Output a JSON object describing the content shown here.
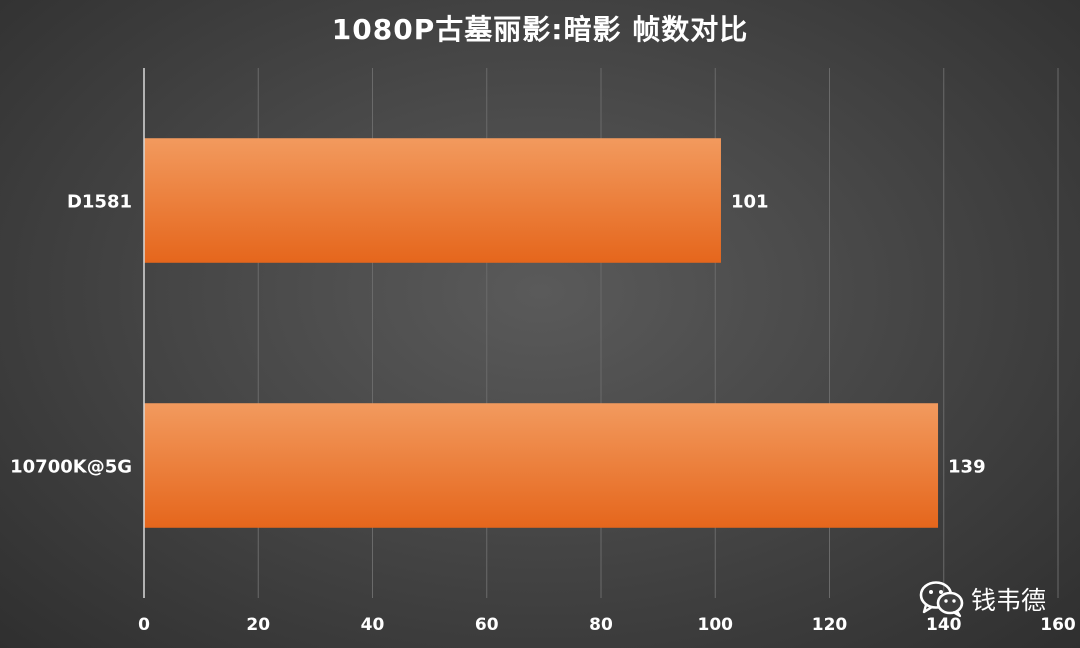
{
  "chart_data": {
    "type": "bar",
    "orientation": "horizontal",
    "title": "1080P古墓丽影:暗影 帧数对比",
    "categories": [
      "D1581",
      "10700K@5G"
    ],
    "values": [
      101,
      139
    ],
    "value_labels": [
      "101",
      "139"
    ],
    "xlim": [
      0,
      160
    ],
    "x_ticks": [
      0,
      20,
      40,
      60,
      80,
      100,
      120,
      140,
      160
    ],
    "x_tick_labels": [
      "0",
      "20",
      "40",
      "60",
      "80",
      "100",
      "120",
      "140",
      "160"
    ],
    "grid": true,
    "legend": "none",
    "colors": {
      "bar_top": "#f29a5e",
      "bar_bottom": "#e5661c",
      "grid": "#6a6a6a",
      "axis": "#d9d9d9",
      "text": "#ffffff"
    }
  },
  "watermark": {
    "icon": "wechat-icon",
    "text": "钱韦德"
  }
}
